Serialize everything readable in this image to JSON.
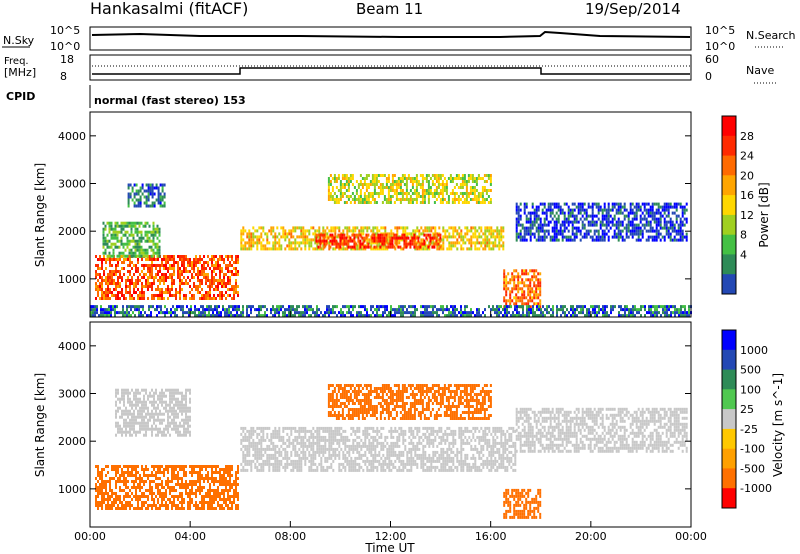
{
  "header": {
    "station": "Hankasalmi (fitACF)",
    "beam": "Beam 11",
    "date": "19/Sep/2014"
  },
  "top_panels": {
    "nsky_label": "N.Sky",
    "nsearch_label": "N.Search",
    "noise_ticks_left": [
      "10^5",
      "10^0"
    ],
    "noise_ticks_right": [
      "10^5",
      "10^0"
    ],
    "freq_label": "Freq.",
    "freq_unit": "[MHz]",
    "freq_ticks": [
      "18",
      "8"
    ],
    "nave_label": "Nave",
    "nave_ticks": [
      "60",
      "0"
    ],
    "cpid_label": "CPID",
    "cpid_value": "normal (fast stereo) 153"
  },
  "axes": {
    "ylabel": "Slant Range [km]",
    "y_ticks": [
      "4000",
      "3000",
      "2000",
      "1000"
    ],
    "xlabel": "Time UT",
    "x_ticks": [
      "00:00",
      "04:00",
      "08:00",
      "12:00",
      "16:00",
      "20:00",
      "00:00"
    ]
  },
  "colors": {
    "power": [
      "#0000ff",
      "#2348b4",
      "#2e8b57",
      "#44c044",
      "#a0d020",
      "#ffd700",
      "#ffa500",
      "#ff6a00",
      "#ff2a00",
      "#ff0000"
    ],
    "velocity": [
      "#ff0000",
      "#ff7000",
      "#ffa000",
      "#ffc800",
      "#c8c8c8",
      "#50c850",
      "#2e8b57",
      "#2348b4",
      "#0000ff"
    ]
  },
  "chart_data": [
    {
      "type": "heatmap",
      "title": "Power",
      "colorbar_label": "Power [dB]",
      "colorbar_ticks": [
        "28",
        "24",
        "20",
        "16",
        "12",
        "8",
        "4"
      ],
      "x": "Time UT (h)",
      "xlim": [
        0,
        24
      ],
      "ylim": [
        200,
        4500
      ],
      "regions": [
        {
          "t": [
            0.2,
            5.9
          ],
          "r": [
            600,
            1500
          ],
          "power": 24
        },
        {
          "t": [
            0.5,
            2.8
          ],
          "r": [
            1500,
            2200
          ],
          "power": 12
        },
        {
          "t": [
            1.5,
            3.0
          ],
          "r": [
            2500,
            3000
          ],
          "power": 8
        },
        {
          "t": [
            6.0,
            16.5
          ],
          "r": [
            1600,
            2100
          ],
          "power": 18
        },
        {
          "t": [
            9.0,
            14.0
          ],
          "r": [
            1650,
            1950
          ],
          "power": 26
        },
        {
          "t": [
            9.5,
            16.0
          ],
          "r": [
            2600,
            3200
          ],
          "power": 16
        },
        {
          "t": [
            16.5,
            18.0
          ],
          "r": [
            400,
            1200
          ],
          "power": 22
        },
        {
          "t": [
            17.0,
            23.8
          ],
          "r": [
            1800,
            2600
          ],
          "power": 6
        },
        {
          "t": [
            0.0,
            24.0
          ],
          "r": [
            250,
            450
          ],
          "power": 8
        }
      ]
    },
    {
      "type": "heatmap",
      "title": "Velocity",
      "colorbar_label": "Velocity [m s^-1]",
      "colorbar_ticks": [
        "1000",
        "500",
        "100",
        "25",
        "-25",
        "-100",
        "-500",
        "-1000"
      ],
      "x": "Time UT (h)",
      "xlim": [
        0,
        24
      ],
      "ylim": [
        200,
        4500
      ],
      "regions": [
        {
          "t": [
            0.2,
            5.9
          ],
          "r": [
            600,
            1500
          ],
          "velocity": -150
        },
        {
          "t": [
            1.0,
            4.0
          ],
          "r": [
            2100,
            3100
          ],
          "velocity": 0
        },
        {
          "t": [
            6.0,
            17.0
          ],
          "r": [
            1400,
            2300
          ],
          "velocity": 0
        },
        {
          "t": [
            9.5,
            16.0
          ],
          "r": [
            2500,
            3200
          ],
          "velocity": -200
        },
        {
          "t": [
            16.5,
            18.0
          ],
          "r": [
            400,
            1000
          ],
          "velocity": -150
        },
        {
          "t": [
            17.0,
            23.8
          ],
          "r": [
            1800,
            2700
          ],
          "velocity": 0
        }
      ]
    }
  ]
}
